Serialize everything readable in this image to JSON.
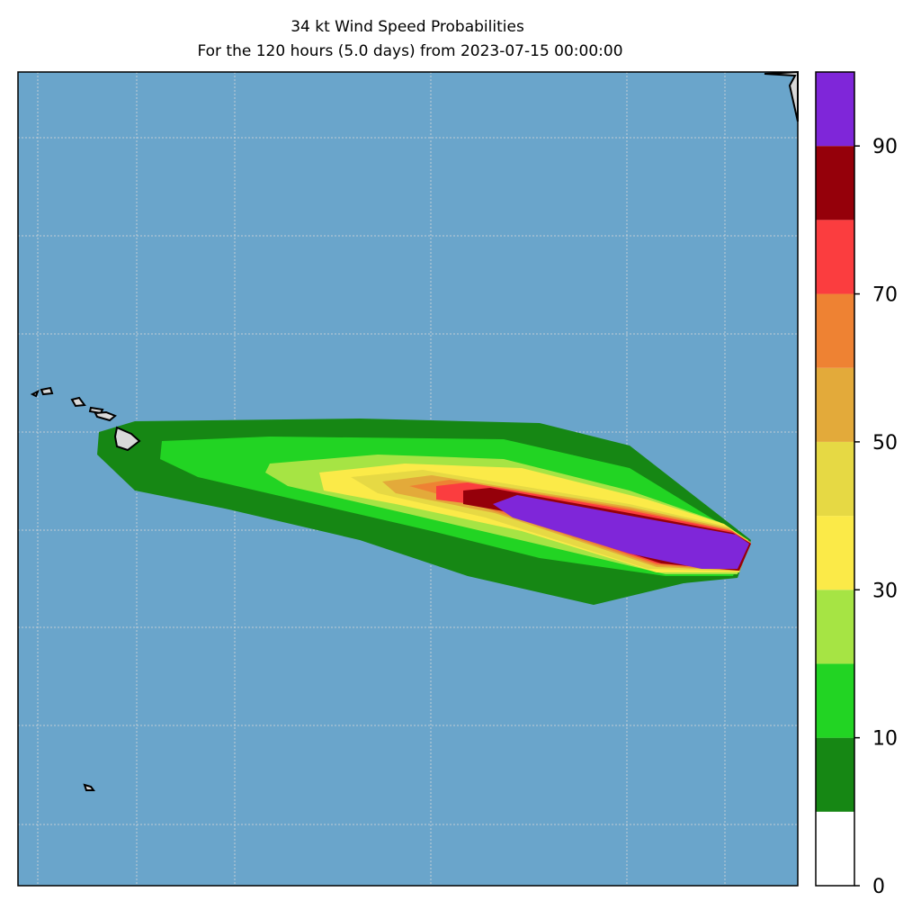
{
  "chart_data": {
    "type": "filled-contour-map",
    "title": "34 kt Wind Speed Probabilities",
    "subtitle": "For the 120 hours (5.0 days) from 2023-07-15 00:00:00",
    "levels": [
      0,
      5,
      10,
      20,
      30,
      40,
      50,
      60,
      70,
      80,
      90,
      100
    ],
    "colors": [
      "#ffffff",
      "#168714",
      "#22d423",
      "#a6e444",
      "#fbea48",
      "#e6d944",
      "#e3aa3a",
      "#ee8233",
      "#fb3d3f",
      "#95000a",
      "#7f26d9"
    ],
    "ocean_color": "#6aa5cb",
    "cbar_ticks": [
      0,
      10,
      30,
      50,
      70,
      90
    ]
  }
}
